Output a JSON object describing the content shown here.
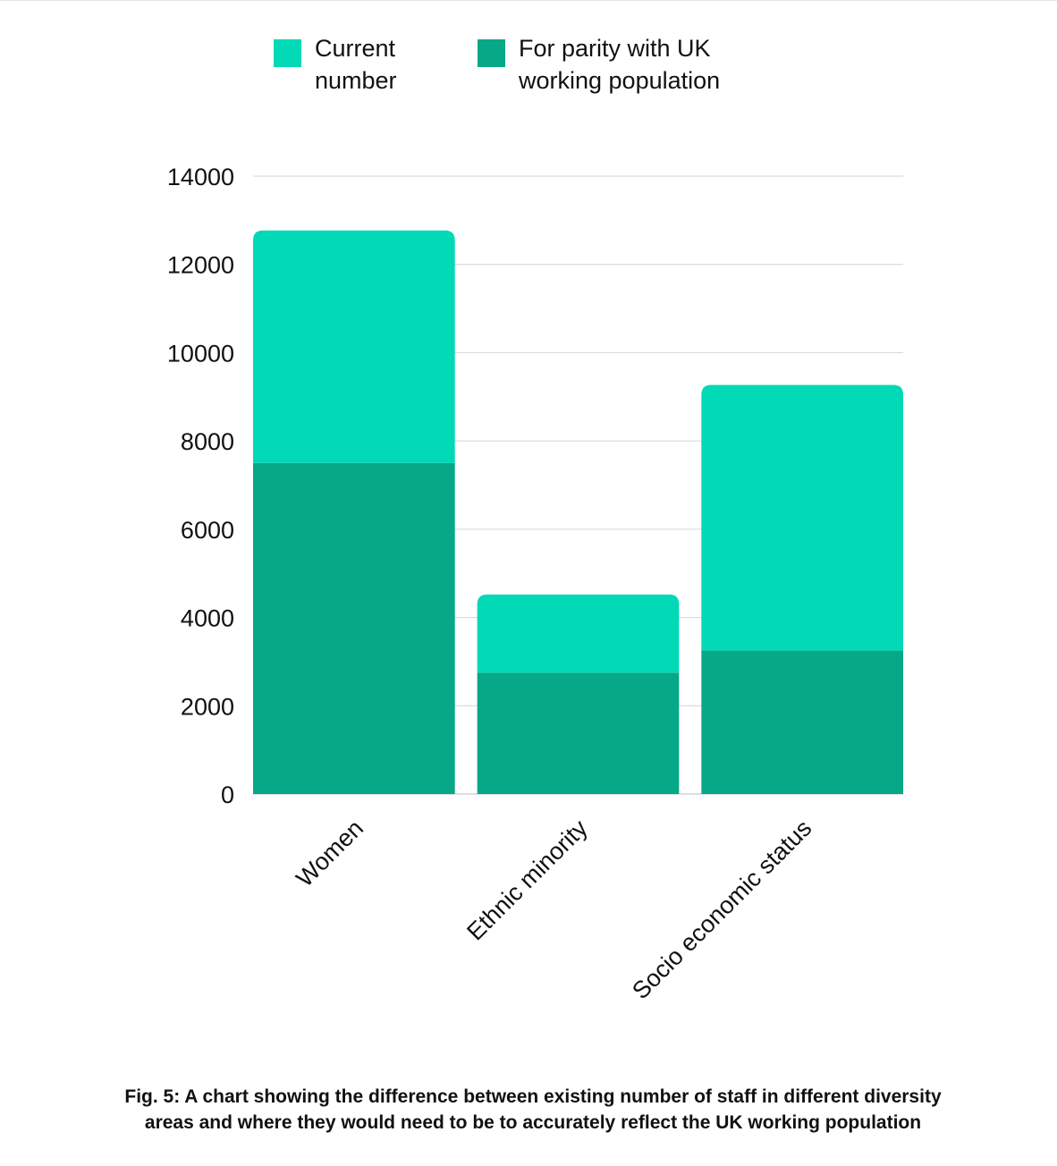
{
  "chart_data": {
    "type": "bar",
    "stacked": true,
    "categories": [
      "Women",
      "Ethnic minority",
      "Socio economic status"
    ],
    "series": [
      {
        "name": "For parity with UK working population",
        "color": "#06A888",
        "values": [
          7500,
          2750,
          3250
        ]
      },
      {
        "name": "Current number",
        "color": "#02D9B6",
        "values": [
          5270,
          1770,
          6020
        ]
      }
    ],
    "ylim": [
      0,
      14000
    ],
    "yticks": [
      0,
      2000,
      4000,
      6000,
      8000,
      10000,
      12000,
      14000
    ],
    "grid": true,
    "legend_position": "top"
  },
  "legend": {
    "current_label_line1": "Current",
    "current_label_line2": "number",
    "current_color": "#02D9B6",
    "parity_label_line1": "For parity with UK",
    "parity_label_line2": "working population",
    "parity_color": "#06A888"
  },
  "caption": {
    "line1": "Fig. 5: A chart showing the difference between existing number of staff in different diversity",
    "line2": "areas and where they would need to be to accurately reflect the UK working population"
  }
}
